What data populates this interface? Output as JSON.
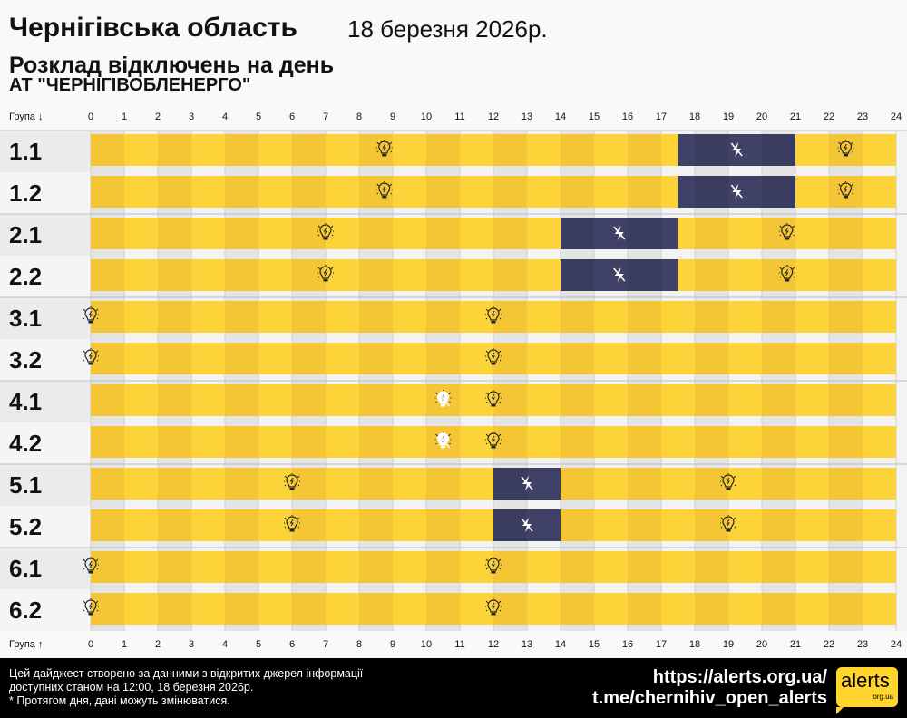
{
  "header": {
    "region": "Чернігівська область",
    "date": "18 березня 2026р.",
    "title": "Розклад відключень на день",
    "company": "АТ \"ЧЕРНІГІВОБЛЕНЕРГО\""
  },
  "axis": {
    "top_label": "Група ↓",
    "bottom_label": "Група ↑",
    "hours": [
      "0",
      "1",
      "2",
      "3",
      "4",
      "5",
      "6",
      "7",
      "8",
      "9",
      "10",
      "11",
      "12",
      "13",
      "14",
      "15",
      "16",
      "17",
      "18",
      "19",
      "20",
      "21",
      "22",
      "23",
      "24"
    ]
  },
  "colors": {
    "on": "#fdd33a",
    "on_dark": "#f4c636",
    "off": "#3f4166",
    "off_dark": "#3a3c60"
  },
  "groups": [
    {
      "name": "1.1",
      "outages": [
        [
          17.5,
          21
        ]
      ],
      "icons": [
        {
          "h": 8.75,
          "type": "bulb-icon"
        },
        {
          "h": 19.25,
          "type": "power-off-icon"
        },
        {
          "h": 22.5,
          "type": "bulb-icon"
        }
      ]
    },
    {
      "name": "1.2",
      "outages": [
        [
          17.5,
          21
        ]
      ],
      "icons": [
        {
          "h": 8.75,
          "type": "bulb-icon"
        },
        {
          "h": 19.25,
          "type": "power-off-icon"
        },
        {
          "h": 22.5,
          "type": "bulb-icon"
        }
      ]
    },
    {
      "name": "2.1",
      "outages": [
        [
          14,
          17.5
        ]
      ],
      "icons": [
        {
          "h": 7,
          "type": "bulb-icon"
        },
        {
          "h": 15.75,
          "type": "power-off-icon"
        },
        {
          "h": 20.75,
          "type": "bulb-icon"
        }
      ]
    },
    {
      "name": "2.2",
      "outages": [
        [
          14,
          17.5
        ]
      ],
      "icons": [
        {
          "h": 7,
          "type": "bulb-icon"
        },
        {
          "h": 15.75,
          "type": "power-off-icon"
        },
        {
          "h": 20.75,
          "type": "bulb-icon"
        }
      ]
    },
    {
      "name": "3.1",
      "outages": [],
      "icons": [
        {
          "h": 0,
          "type": "bulb-icon"
        },
        {
          "h": 12,
          "type": "bulb-icon"
        }
      ]
    },
    {
      "name": "3.2",
      "outages": [],
      "icons": [
        {
          "h": 0,
          "type": "bulb-icon"
        },
        {
          "h": 12,
          "type": "bulb-icon"
        }
      ]
    },
    {
      "name": "4.1",
      "outages": [],
      "icons": [
        {
          "h": 10.5,
          "type": "possible-outage-icon"
        },
        {
          "h": 12,
          "type": "bulb-icon"
        }
      ]
    },
    {
      "name": "4.2",
      "outages": [],
      "icons": [
        {
          "h": 10.5,
          "type": "possible-outage-icon"
        },
        {
          "h": 12,
          "type": "bulb-icon"
        }
      ]
    },
    {
      "name": "5.1",
      "outages": [
        [
          12,
          14
        ]
      ],
      "icons": [
        {
          "h": 6,
          "type": "bulb-icon"
        },
        {
          "h": 13,
          "type": "power-off-icon"
        },
        {
          "h": 19,
          "type": "bulb-icon"
        }
      ]
    },
    {
      "name": "5.2",
      "outages": [
        [
          12,
          14
        ]
      ],
      "icons": [
        {
          "h": 6,
          "type": "bulb-icon"
        },
        {
          "h": 13,
          "type": "power-off-icon"
        },
        {
          "h": 19,
          "type": "bulb-icon"
        }
      ]
    },
    {
      "name": "6.1",
      "outages": [],
      "icons": [
        {
          "h": 0,
          "type": "bulb-icon"
        },
        {
          "h": 12,
          "type": "bulb-icon"
        }
      ]
    },
    {
      "name": "6.2",
      "outages": [],
      "icons": [
        {
          "h": 0,
          "type": "bulb-icon"
        },
        {
          "h": 12,
          "type": "bulb-icon"
        }
      ]
    }
  ],
  "footer": {
    "line1": "Цей дайджест створено за данними з відкритих джерел інформації",
    "line2": "доступних станом на 12:00, 18 березня 2026р.",
    "line3": "* Протягом дня, дані можуть змінюватися.",
    "url": "https://alerts.org.ua/",
    "telegram": "t.me/chernihiv_open_alerts",
    "logo_text": "alerts",
    "logo_sub": "org.ua"
  }
}
